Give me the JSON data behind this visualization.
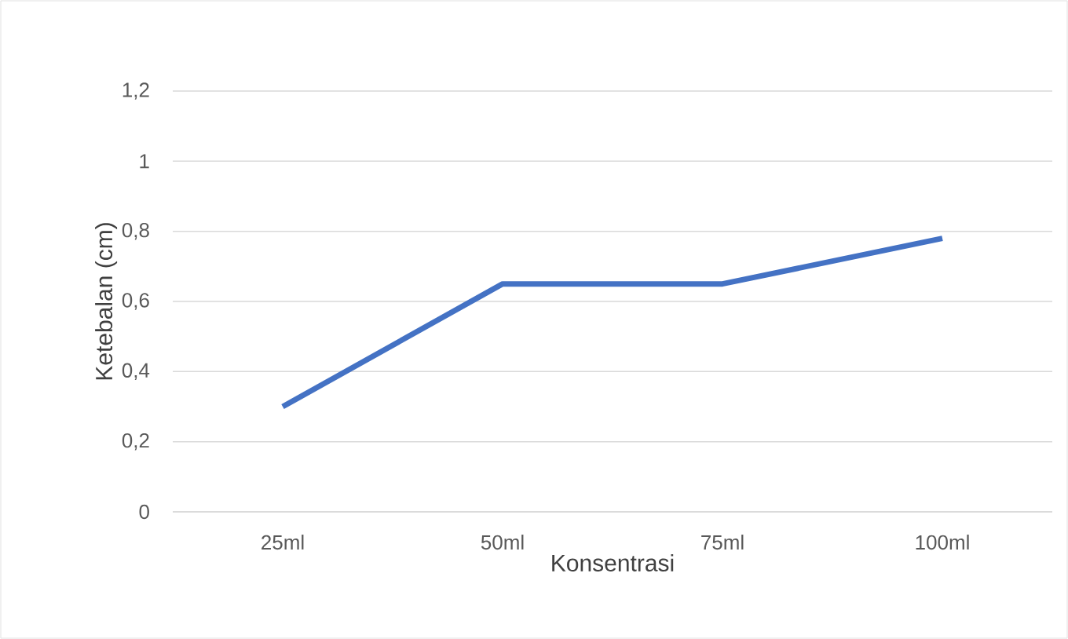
{
  "chart_data": {
    "type": "line",
    "xlabel": "Konsentrasi",
    "ylabel": "Ketebalan (cm)",
    "categories": [
      "25ml",
      "50ml",
      "75ml",
      "100ml"
    ],
    "values": [
      0.3,
      0.65,
      0.65,
      0.78
    ],
    "color": "#4472c4",
    "ylim": [
      0,
      1.2
    ],
    "yticks": [
      0,
      {
        "value": 0.2,
        "label": "0,2"
      },
      {
        "value": 0.4,
        "label": "0,4"
      },
      {
        "value": 0.6,
        "label": "0,6"
      },
      {
        "value": 0.8,
        "label": "0,8"
      },
      1,
      {
        "value": 1.2,
        "label": "1,2"
      }
    ],
    "grid": "y"
  }
}
